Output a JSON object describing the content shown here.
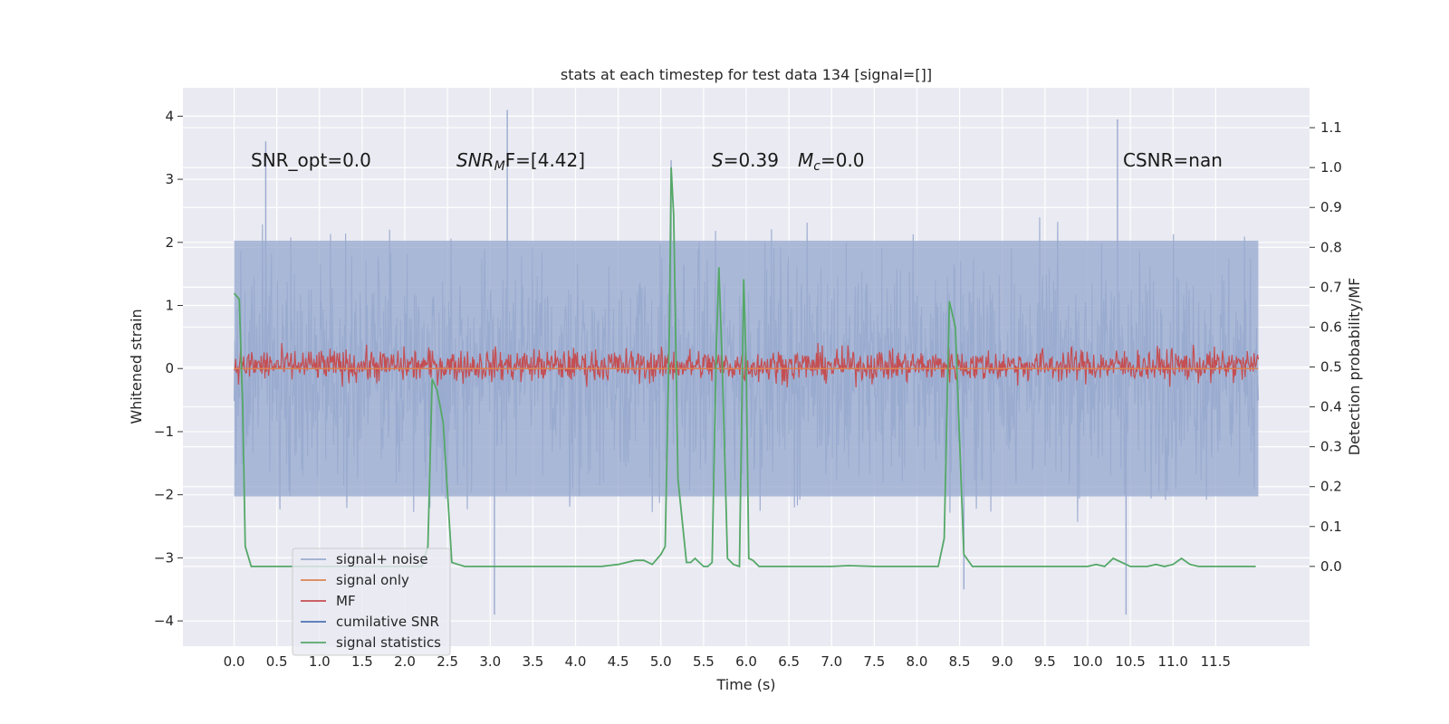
{
  "chart_data": {
    "type": "line",
    "title": "stats at each timestep for test data 134 [signal=[]]",
    "xlabel": "Time (s)",
    "ylabel": "Whitened strain",
    "ylabel_right": "Detection probability/MF",
    "xlim": [
      -0.6,
      12.6
    ],
    "ylim": [
      -4.4,
      4.45
    ],
    "ylim_right": [
      -0.2,
      1.2
    ],
    "x_ticks": [
      "0.0",
      "0.5",
      "1.0",
      "1.5",
      "2.0",
      "2.5",
      "3.0",
      "3.5",
      "4.0",
      "4.5",
      "5.0",
      "5.5",
      "6.0",
      "6.5",
      "7.0",
      "7.5",
      "8.0",
      "8.5",
      "9.0",
      "9.5",
      "10.0",
      "10.5",
      "11.0",
      "11.5"
    ],
    "y_ticks": [
      "−4",
      "−3",
      "−2",
      "−1",
      "0",
      "1",
      "2",
      "3",
      "4"
    ],
    "y_ticks_right": [
      "0.0",
      "0.1",
      "0.2",
      "0.3",
      "0.4",
      "0.5",
      "0.6",
      "0.7",
      "0.8",
      "0.9",
      "1.0",
      "1.1"
    ],
    "grid": true,
    "legend_placement": "lower-left",
    "annotations": {
      "snr_opt": "SNR_opt=0.0",
      "snr_mf_main": "SNR",
      "snr_mf_sub": "M",
      "snr_mf_rest": "F=[4.42]",
      "s_stat": "S",
      "s_value": "=0.39",
      "mc_main": "M",
      "mc_sub": "c",
      "mc_value": "=0.0",
      "csnr": "CSNR=nan"
    },
    "colors": {
      "background": "#eaeaf2",
      "signal_noise": "#9aabd0",
      "signal_only": "#dd8452",
      "mf": "#c44e52",
      "cumulative_snr": "#4c72b0",
      "signal_statistics": "#55a868"
    },
    "series": [
      {
        "name": "signal+ noise",
        "axis": "left",
        "description": "dense whitened noise",
        "x_range": [
          0,
          12
        ],
        "envelope": [
          -2.6,
          2.6
        ],
        "peaks": [
          [
            0.37,
            3.6
          ],
          [
            3.2,
            4.1
          ],
          [
            5.12,
            3.3
          ],
          [
            10.35,
            3.95
          ],
          [
            3.05,
            -3.9
          ],
          [
            10.45,
            -3.9
          ],
          [
            8.55,
            -3.5
          ]
        ]
      },
      {
        "name": "signal only",
        "axis": "left",
        "x_range": [
          0,
          12
        ],
        "values": "flat at 0"
      },
      {
        "name": "MF",
        "axis": "left",
        "x_range": [
          0,
          12
        ],
        "envelope": [
          -0.4,
          0.85
        ]
      },
      {
        "name": "cumilative SNR",
        "axis": "left",
        "values": []
      },
      {
        "name": "signal statistics",
        "axis": "right",
        "x": [
          0.0,
          0.06,
          0.1,
          0.13,
          0.2,
          0.5,
          1.0,
          1.5,
          2.0,
          2.2,
          2.27,
          2.32,
          2.38,
          2.45,
          2.55,
          2.7,
          3.0,
          3.5,
          4.0,
          4.3,
          4.5,
          4.7,
          4.8,
          4.9,
          5.0,
          5.05,
          5.1,
          5.12,
          5.15,
          5.2,
          5.3,
          5.35,
          5.4,
          5.45,
          5.5,
          5.55,
          5.6,
          5.65,
          5.68,
          5.72,
          5.78,
          5.85,
          5.92,
          5.97,
          6.0,
          6.03,
          6.08,
          6.15,
          6.25,
          6.5,
          7.0,
          7.2,
          7.5,
          8.0,
          8.25,
          8.32,
          8.38,
          8.45,
          8.55,
          8.65,
          9.0,
          9.5,
          9.7,
          10.0,
          10.1,
          10.2,
          10.3,
          10.5,
          10.7,
          10.8,
          10.9,
          11.0,
          11.1,
          11.2,
          11.3,
          11.5,
          11.8,
          11.97
        ],
        "values": [
          0.685,
          0.67,
          0.4,
          0.05,
          0.0,
          0.0,
          0.0,
          0.0,
          0.0,
          0.0,
          0.05,
          0.47,
          0.44,
          0.36,
          0.01,
          0.0,
          0.0,
          0.0,
          0.0,
          0.0,
          0.005,
          0.015,
          0.015,
          0.005,
          0.03,
          0.05,
          0.6,
          1.0,
          0.88,
          0.22,
          0.01,
          0.01,
          0.02,
          0.01,
          0.0,
          0.0,
          0.01,
          0.55,
          0.75,
          0.5,
          0.02,
          0.005,
          0.0,
          0.72,
          0.5,
          0.02,
          0.015,
          0.0,
          0.0,
          0.0,
          0.0,
          0.002,
          0.0,
          0.0,
          0.0,
          0.07,
          0.665,
          0.6,
          0.03,
          0.0,
          0.0,
          0.0,
          0.0,
          0.0,
          0.005,
          0.0,
          0.02,
          0.0,
          0.0,
          0.005,
          0.0,
          0.005,
          0.02,
          0.005,
          0.0,
          0.0,
          0.0,
          0.0
        ]
      }
    ]
  }
}
